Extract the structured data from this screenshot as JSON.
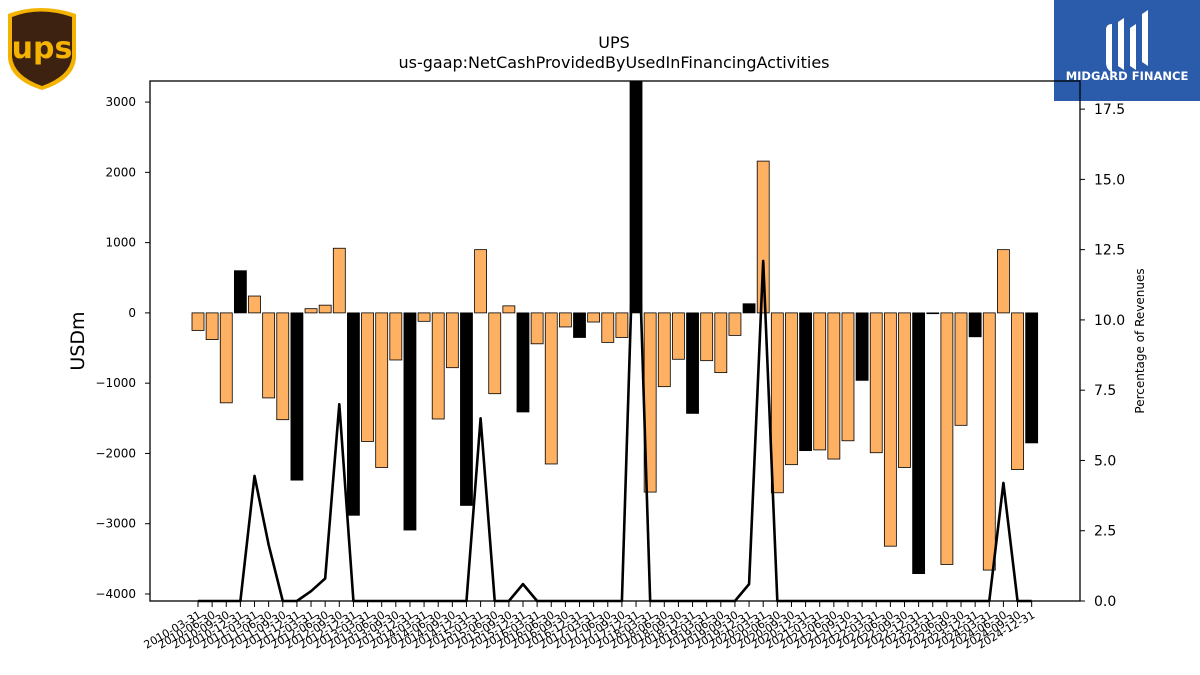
{
  "brand": {
    "logo_text": "ups",
    "badge_text": "MIDGARD FINANCE",
    "colors": {
      "ups_brown": "#3d2211",
      "ups_gold": "#f5b301",
      "midgard_blue": "#2b5bab"
    }
  },
  "chart_data": {
    "type": "bar",
    "title": "UPS",
    "subtitle": "us-gaap:NetCashProvidedByUsedInFinancingActivities",
    "ylabel": "USDm",
    "y2label": "Percentage of Revenues",
    "ylim": [
      -4100,
      3300
    ],
    "y2lim": [
      0,
      18.5
    ],
    "yticks": [
      -4000,
      -3000,
      -2000,
      -1000,
      0,
      1000,
      2000,
      3000
    ],
    "y2ticks": [
      0.0,
      2.5,
      5.0,
      7.5,
      10.0,
      12.5,
      15.0,
      17.5
    ],
    "bar_colors": {
      "quarter": "#ffb163",
      "year_end": "#000000"
    },
    "line_color": "#000000",
    "categories": [
      "2010-03-31",
      "2010-06-30",
      "2010-09-30",
      "2010-12-31",
      "2011-03-31",
      "2011-06-30",
      "2011-09-30",
      "2011-12-31",
      "2012-03-31",
      "2012-06-30",
      "2012-09-30",
      "2012-12-31",
      "2013-03-31",
      "2013-06-30",
      "2013-09-30",
      "2013-12-31",
      "2014-03-31",
      "2014-06-30",
      "2014-09-30",
      "2014-12-31",
      "2015-03-31",
      "2015-06-30",
      "2015-09-30",
      "2015-12-31",
      "2016-03-31",
      "2016-06-30",
      "2016-09-30",
      "2016-12-31",
      "2017-03-31",
      "2017-06-30",
      "2017-09-30",
      "2017-12-31",
      "2018-03-31",
      "2018-06-30",
      "2018-09-30",
      "2018-12-31",
      "2019-03-31",
      "2019-06-30",
      "2019-09-30",
      "2019-12-31",
      "2020-03-31",
      "2020-06-30",
      "2020-09-30",
      "2020-12-31",
      "2021-03-31",
      "2021-06-30",
      "2021-09-30",
      "2021-12-31",
      "2022-03-31",
      "2022-06-30",
      "2022-09-30",
      "2022-12-31",
      "2023-03-31",
      "2023-06-30",
      "2023-09-30",
      "2023-12-31",
      "2024-03-31",
      "2024-06-30",
      "2024-09-30",
      "2024-12-31"
    ],
    "values": [
      -250,
      -380,
      -1280,
      600,
      240,
      -1210,
      -1520,
      -2380,
      60,
      110,
      920,
      -2880,
      -1830,
      -2200,
      -670,
      -3090,
      -120,
      -1510,
      -780,
      -2740,
      900,
      -1150,
      100,
      -1410,
      -440,
      -2150,
      -200,
      -350,
      -130,
      -420,
      -350,
      3400,
      -2550,
      -1050,
      -660,
      -1430,
      -680,
      -850,
      -320,
      130,
      2160,
      -2560,
      -2160,
      -1960,
      -1950,
      -2080,
      -1820,
      -960,
      -1990,
      -3320,
      -2200,
      -3710,
      -10,
      -3580,
      -1600,
      -340,
      -3660,
      900,
      -2230,
      -1850
    ],
    "year_end": [
      false,
      false,
      false,
      true,
      false,
      false,
      false,
      true,
      false,
      false,
      false,
      true,
      false,
      false,
      false,
      true,
      false,
      false,
      false,
      true,
      false,
      false,
      false,
      true,
      false,
      false,
      false,
      true,
      false,
      false,
      false,
      true,
      false,
      false,
      false,
      true,
      false,
      false,
      false,
      true,
      false,
      false,
      false,
      true,
      false,
      false,
      false,
      true,
      false,
      false,
      false,
      true,
      false,
      false,
      false,
      true,
      false,
      false,
      false,
      true
    ],
    "pct_of_revenues": [
      0,
      0,
      0,
      0,
      4.45,
      2.0,
      0,
      0,
      0.35,
      0.8,
      7.0,
      0,
      0,
      0,
      0,
      0,
      0,
      0,
      0,
      0,
      6.5,
      0,
      0,
      0.6,
      0,
      0,
      0,
      0,
      0,
      0,
      0,
      16.0,
      0,
      0,
      0,
      0,
      0,
      0,
      0,
      0.6,
      12.1,
      0,
      0,
      0,
      0,
      0,
      0,
      0,
      0,
      0,
      0,
      0,
      0,
      0,
      0,
      0,
      0,
      4.2,
      0,
      0
    ],
    "xticklabels": [
      "2010-03-31",
      "2010-06-30",
      "2010-09-30",
      "2010-12-31",
      "2011-03-31",
      "2011-06-30",
      "2011-09-30",
      "2011-12-31",
      "2012-03-31",
      "2012-06-30",
      "2012-09-30",
      "2012-12-31",
      "2013-03-31",
      "2013-06-30",
      "2013-09-30",
      "2013-12-31",
      "2014-03-31",
      "2014-06-30",
      "2014-09-30",
      "2014-12-31",
      "2015-03-31",
      "2015-06-30",
      "2015-09-30",
      "2015-12-31",
      "2016-03-31",
      "2016-06-30",
      "2016-09-30",
      "2016-12-31",
      "2017-03-31",
      "2017-06-30",
      "2017-09-30",
      "2017-12-31",
      "2018-03-31",
      "2018-06-30",
      "2018-09-30",
      "2018-12-31",
      "2019-03-31",
      "2019-06-30",
      "2019-09-30",
      "2019-12-31",
      "2020-03-31",
      "2020-06-30",
      "2020-09-30",
      "2020-12-31",
      "2021-03-31",
      "2021-06-30",
      "2021-09-30",
      "2021-12-31",
      "2022-03-31",
      "2022-06-30",
      "2022-09-30",
      "2022-12-31",
      "2023-03-31",
      "2023-06-30",
      "2023-09-30",
      "2023-12-31",
      "2024-03-31",
      "2024-06-30",
      "2024-09-30",
      "2024-12-31"
    ],
    "grid": false,
    "legend": "none"
  }
}
